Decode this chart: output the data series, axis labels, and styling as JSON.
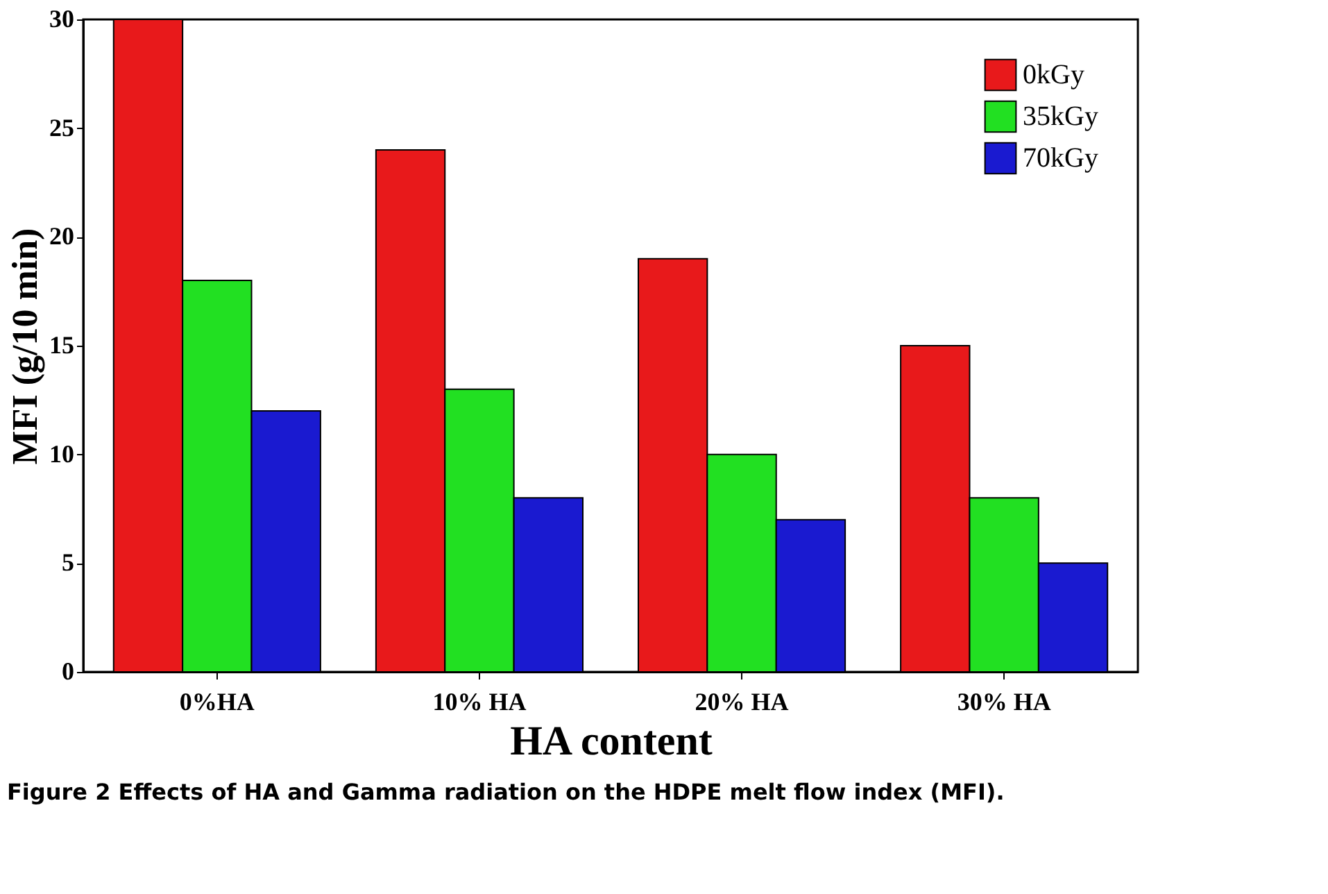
{
  "chart_data": {
    "type": "bar",
    "xlabel": "HA content",
    "ylabel": "MFI (g/10 min)",
    "categories": [
      "0%HA",
      "10% HA",
      "20% HA",
      "30% HA"
    ],
    "series": [
      {
        "name": "0kGy",
        "color": "#e8191b",
        "values": [
          30,
          24,
          19,
          15
        ]
      },
      {
        "name": "35kGy",
        "color": "#22e022",
        "values": [
          18,
          13,
          10,
          8
        ]
      },
      {
        "name": "70kGy",
        "color": "#1a1ad0",
        "values": [
          12,
          8,
          7,
          5
        ]
      }
    ],
    "ylim": [
      0,
      30
    ],
    "yticks": [
      0,
      5,
      10,
      15,
      20,
      25,
      30
    ],
    "grid": false,
    "legend": "top right",
    "annotations": [
      "Figure 2 Effects of HA and Gamma radiation on the HDPE melt flow index (MFI)."
    ]
  }
}
